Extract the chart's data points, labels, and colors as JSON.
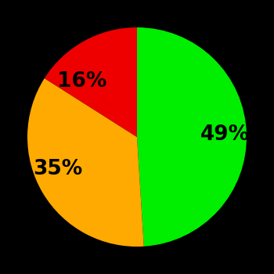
{
  "slices": [
    49,
    35,
    16
  ],
  "colors": [
    "#00ee00",
    "#ffaa00",
    "#ee0000"
  ],
  "labels": [
    "49%",
    "35%",
    "16%"
  ],
  "background_color": "#000000",
  "startangle": 90,
  "figsize": [
    3.5,
    3.5
  ],
  "dpi": 100,
  "label_fontsize": 19,
  "label_fontweight": "bold",
  "label_color": "#000000",
  "labeldistance": 0.58
}
